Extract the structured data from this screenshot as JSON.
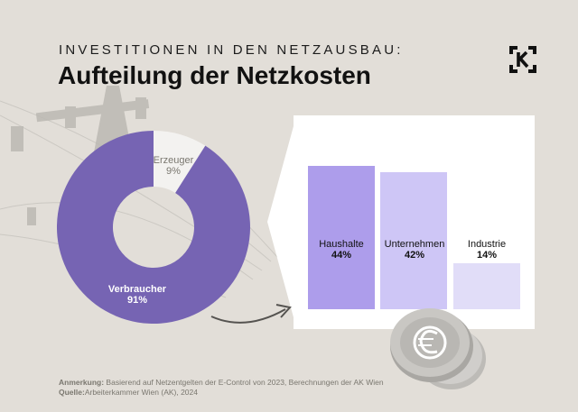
{
  "header": {
    "kicker": "INVESTITIONEN IN DEN NETZAUSBAU:",
    "title": "Aufteilung der Netzkosten",
    "logo_icon": "ak-logo-icon"
  },
  "colors": {
    "background": "#e2ded8",
    "donut_main": "#7664b3",
    "donut_minor": "#f3f2f0",
    "bar_haushalte": "#ad9deb",
    "bar_unternehmen": "#cec6f6",
    "bar_industrie": "#e1ddf8",
    "panel": "#ffffff",
    "coin": "#c8c6c2"
  },
  "chart_data": [
    {
      "type": "pie",
      "subtype": "donut",
      "title": "Aufteilung der Netzkosten",
      "categories": [
        "Erzeuger",
        "Verbraucher"
      ],
      "values": [
        9,
        91
      ],
      "labels": [
        "9%",
        "91%"
      ]
    },
    {
      "type": "bar",
      "title": "Verbraucher",
      "categories": [
        "Haushalte",
        "Unternehmen",
        "Industrie"
      ],
      "values": [
        44,
        42,
        14
      ],
      "labels": [
        "44%",
        "42%",
        "14%"
      ],
      "ylim": [
        0,
        44
      ]
    }
  ],
  "footer": {
    "note_label": "Anmerkung:",
    "note_text": " Basierend auf Netzentgelten der E-Control von 2023, Berechnungen der AK Wien",
    "source_label": "Quelle:",
    "source_text": "Arbeiterkammer Wien (AK), 2024"
  }
}
